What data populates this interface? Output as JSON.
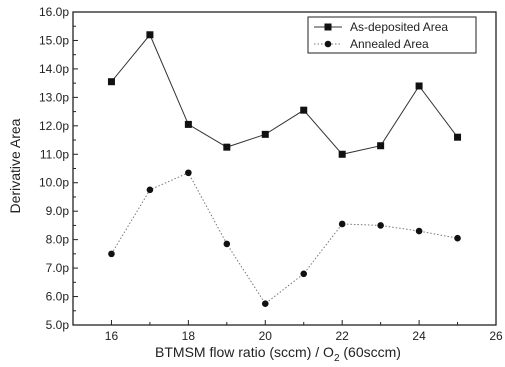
{
  "chart_data": {
    "type": "line",
    "xlabel": "BTMSM flow ratio (sccm) / O",
    "xlabel_sub": "2",
    "xlabel_suffix": " (60sccm)",
    "ylabel": "Derivative Area",
    "xlim": [
      15,
      26
    ],
    "ylim": [
      5.0,
      16.0
    ],
    "x_ticks": [
      16,
      18,
      20,
      22,
      24,
      26
    ],
    "y_ticks": [
      5.0,
      6.0,
      7.0,
      8.0,
      9.0,
      10.0,
      11.0,
      12.0,
      13.0,
      14.0,
      15.0,
      16.0
    ],
    "y_tick_labels": [
      "5.0p",
      "6.0p",
      "7.0p",
      "8.0p",
      "9.0p",
      "10.0p",
      "11.0p",
      "12.0p",
      "13.0p",
      "14.0p",
      "15.0p",
      "16.0p"
    ],
    "legend_position": "top-right",
    "grid": false,
    "series": [
      {
        "name": "As-deposited Area",
        "marker": "square",
        "line_style": "solid",
        "x": [
          16,
          17,
          18,
          19,
          20,
          21,
          22,
          23,
          24,
          25
        ],
        "values": [
          13.55,
          15.2,
          12.05,
          11.25,
          11.7,
          12.55,
          11.0,
          11.3,
          13.4,
          11.6
        ]
      },
      {
        "name": "Annealed Area",
        "marker": "circle",
        "line_style": "dotted",
        "x": [
          16,
          17,
          18,
          19,
          20,
          21,
          22,
          23,
          24,
          25
        ],
        "values": [
          7.5,
          9.75,
          10.35,
          7.85,
          5.75,
          6.8,
          8.55,
          8.5,
          8.3,
          8.05
        ]
      }
    ]
  }
}
